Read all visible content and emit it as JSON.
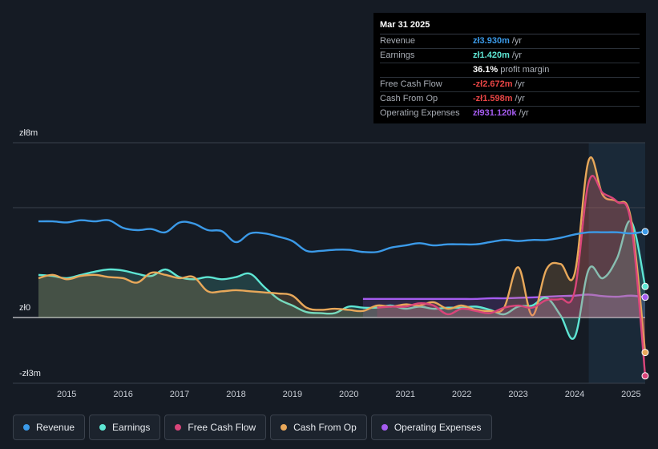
{
  "tooltip": {
    "date": "Mar 31 2025",
    "rows": [
      {
        "label": "Revenue",
        "value": "zł3.930m",
        "unit": "/yr",
        "color": "#3b9ae8"
      },
      {
        "label": "Earnings",
        "value": "zł1.420m",
        "unit": "/yr",
        "color": "#5ee6d4"
      },
      {
        "label": "",
        "value": "36.1%",
        "unit": "profit margin",
        "color": "#ffffff"
      },
      {
        "label": "Free Cash Flow",
        "value": "-zł2.672m",
        "unit": "/yr",
        "color": "#e84545"
      },
      {
        "label": "Cash From Op",
        "value": "-zł1.598m",
        "unit": "/yr",
        "color": "#e84545"
      },
      {
        "label": "Operating Expenses",
        "value": "zł931.120k",
        "unit": "/yr",
        "color": "#a55cf0"
      }
    ]
  },
  "legend": [
    {
      "label": "Revenue",
      "color": "#3b9ae8"
    },
    {
      "label": "Earnings",
      "color": "#5ee6d4"
    },
    {
      "label": "Free Cash Flow",
      "color": "#d9457a"
    },
    {
      "label": "Cash From Op",
      "color": "#e8a85a"
    },
    {
      "label": "Operating Expenses",
      "color": "#a55cf0"
    }
  ],
  "chart_data": {
    "type": "line",
    "title": "",
    "xlabel": "",
    "ylabel": "",
    "y_tick_labels": [
      "zł8m",
      "zł0",
      "-zł3m"
    ],
    "ylim": [
      -3,
      8
    ],
    "xlim": [
      2014.5,
      2025.25
    ],
    "x_ticks": [
      "2015",
      "2016",
      "2017",
      "2018",
      "2019",
      "2020",
      "2021",
      "2022",
      "2023",
      "2024",
      "2025"
    ],
    "forecast_shade_start": 2024.25,
    "series": [
      {
        "name": "Revenue",
        "color": "#3b9ae8",
        "fill": false,
        "points": [
          [
            2014.5,
            4.4
          ],
          [
            2014.75,
            4.4
          ],
          [
            2015.0,
            4.35
          ],
          [
            2015.25,
            4.45
          ],
          [
            2015.5,
            4.4
          ],
          [
            2015.75,
            4.45
          ],
          [
            2016.0,
            4.1
          ],
          [
            2016.25,
            4.0
          ],
          [
            2016.5,
            4.05
          ],
          [
            2016.75,
            3.9
          ],
          [
            2017.0,
            4.35
          ],
          [
            2017.25,
            4.3
          ],
          [
            2017.5,
            4.0
          ],
          [
            2017.75,
            3.95
          ],
          [
            2018.0,
            3.45
          ],
          [
            2018.25,
            3.85
          ],
          [
            2018.5,
            3.85
          ],
          [
            2018.75,
            3.7
          ],
          [
            2019.0,
            3.5
          ],
          [
            2019.25,
            3.05
          ],
          [
            2019.5,
            3.05
          ],
          [
            2019.75,
            3.1
          ],
          [
            2020.0,
            3.1
          ],
          [
            2020.25,
            3.0
          ],
          [
            2020.5,
            3.0
          ],
          [
            2020.75,
            3.2
          ],
          [
            2021.0,
            3.3
          ],
          [
            2021.25,
            3.4
          ],
          [
            2021.5,
            3.3
          ],
          [
            2021.75,
            3.35
          ],
          [
            2022.0,
            3.35
          ],
          [
            2022.25,
            3.35
          ],
          [
            2022.5,
            3.45
          ],
          [
            2022.75,
            3.55
          ],
          [
            2023.0,
            3.5
          ],
          [
            2023.25,
            3.55
          ],
          [
            2023.5,
            3.55
          ],
          [
            2023.75,
            3.65
          ],
          [
            2024.0,
            3.8
          ],
          [
            2024.25,
            3.9
          ],
          [
            2024.5,
            3.9
          ],
          [
            2024.75,
            3.9
          ],
          [
            2025.0,
            3.85
          ],
          [
            2025.25,
            3.93
          ]
        ]
      },
      {
        "name": "Earnings",
        "color": "#5ee6d4",
        "fill": true,
        "points": [
          [
            2014.5,
            1.95
          ],
          [
            2014.75,
            1.9
          ],
          [
            2015.0,
            1.8
          ],
          [
            2015.25,
            1.95
          ],
          [
            2015.5,
            2.1
          ],
          [
            2015.75,
            2.2
          ],
          [
            2016.0,
            2.15
          ],
          [
            2016.25,
            2.0
          ],
          [
            2016.5,
            1.9
          ],
          [
            2016.75,
            2.2
          ],
          [
            2017.0,
            1.85
          ],
          [
            2017.25,
            1.75
          ],
          [
            2017.5,
            1.85
          ],
          [
            2017.75,
            1.75
          ],
          [
            2018.0,
            1.85
          ],
          [
            2018.25,
            2.0
          ],
          [
            2018.5,
            1.4
          ],
          [
            2018.75,
            0.85
          ],
          [
            2019.0,
            0.55
          ],
          [
            2019.25,
            0.25
          ],
          [
            2019.5,
            0.2
          ],
          [
            2019.75,
            0.2
          ],
          [
            2020.0,
            0.5
          ],
          [
            2020.25,
            0.45
          ],
          [
            2020.5,
            0.45
          ],
          [
            2020.75,
            0.55
          ],
          [
            2021.0,
            0.4
          ],
          [
            2021.25,
            0.5
          ],
          [
            2021.5,
            0.4
          ],
          [
            2021.75,
            0.45
          ],
          [
            2022.0,
            0.45
          ],
          [
            2022.25,
            0.5
          ],
          [
            2022.5,
            0.35
          ],
          [
            2022.75,
            0.15
          ],
          [
            2023.0,
            0.5
          ],
          [
            2023.25,
            0.55
          ],
          [
            2023.5,
            0.9
          ],
          [
            2023.75,
            0.1
          ],
          [
            2024.0,
            -0.9
          ],
          [
            2024.25,
            2.2
          ],
          [
            2024.5,
            1.8
          ],
          [
            2024.75,
            2.7
          ],
          [
            2025.0,
            4.4
          ],
          [
            2025.25,
            1.42
          ]
        ]
      },
      {
        "name": "Free Cash Flow",
        "color": "#d9457a",
        "fill": true,
        "points": [
          [
            2020.5,
            0.45
          ],
          [
            2020.75,
            0.5
          ],
          [
            2021.0,
            0.5
          ],
          [
            2021.25,
            0.65
          ],
          [
            2021.5,
            0.55
          ],
          [
            2021.75,
            0.15
          ],
          [
            2022.0,
            0.4
          ],
          [
            2022.25,
            0.3
          ],
          [
            2022.5,
            0.2
          ],
          [
            2022.75,
            0.45
          ],
          [
            2023.0,
            0.55
          ],
          [
            2023.25,
            0.45
          ],
          [
            2023.5,
            0.8
          ],
          [
            2023.75,
            0.85
          ],
          [
            2024.0,
            1.2
          ],
          [
            2024.25,
            6.2
          ],
          [
            2024.5,
            5.7
          ],
          [
            2024.75,
            5.3
          ],
          [
            2025.0,
            4.3
          ],
          [
            2025.25,
            -2.67
          ]
        ]
      },
      {
        "name": "Cash From Op",
        "color": "#e8a85a",
        "fill": true,
        "points": [
          [
            2014.5,
            1.8
          ],
          [
            2014.75,
            1.95
          ],
          [
            2015.0,
            1.75
          ],
          [
            2015.25,
            1.9
          ],
          [
            2015.5,
            1.95
          ],
          [
            2015.75,
            1.85
          ],
          [
            2016.0,
            1.8
          ],
          [
            2016.25,
            1.6
          ],
          [
            2016.5,
            2.05
          ],
          [
            2016.75,
            1.95
          ],
          [
            2017.0,
            1.8
          ],
          [
            2017.25,
            1.85
          ],
          [
            2017.5,
            1.2
          ],
          [
            2017.75,
            1.2
          ],
          [
            2018.0,
            1.25
          ],
          [
            2018.25,
            1.2
          ],
          [
            2018.5,
            1.15
          ],
          [
            2018.75,
            1.1
          ],
          [
            2019.0,
            1.0
          ],
          [
            2019.25,
            0.45
          ],
          [
            2019.5,
            0.35
          ],
          [
            2019.75,
            0.4
          ],
          [
            2020.0,
            0.35
          ],
          [
            2020.25,
            0.3
          ],
          [
            2020.5,
            0.55
          ],
          [
            2020.75,
            0.5
          ],
          [
            2021.0,
            0.6
          ],
          [
            2021.25,
            0.55
          ],
          [
            2021.5,
            0.7
          ],
          [
            2021.75,
            0.4
          ],
          [
            2022.0,
            0.55
          ],
          [
            2022.25,
            0.35
          ],
          [
            2022.5,
            0.3
          ],
          [
            2022.75,
            0.45
          ],
          [
            2023.0,
            2.3
          ],
          [
            2023.25,
            0.1
          ],
          [
            2023.5,
            2.2
          ],
          [
            2023.75,
            2.45
          ],
          [
            2024.0,
            2.0
          ],
          [
            2024.25,
            7.2
          ],
          [
            2024.5,
            5.6
          ],
          [
            2024.75,
            5.3
          ],
          [
            2025.0,
            4.5
          ],
          [
            2025.25,
            -1.6
          ]
        ]
      },
      {
        "name": "Operating Expenses",
        "color": "#a55cf0",
        "fill": true,
        "points": [
          [
            2020.25,
            0.85
          ],
          [
            2020.5,
            0.85
          ],
          [
            2020.75,
            0.85
          ],
          [
            2021.0,
            0.85
          ],
          [
            2021.25,
            0.85
          ],
          [
            2021.5,
            0.85
          ],
          [
            2021.75,
            0.85
          ],
          [
            2022.0,
            0.85
          ],
          [
            2022.25,
            0.85
          ],
          [
            2022.5,
            0.88
          ],
          [
            2022.75,
            0.88
          ],
          [
            2023.0,
            0.9
          ],
          [
            2023.25,
            0.92
          ],
          [
            2023.5,
            0.95
          ],
          [
            2023.75,
            0.98
          ],
          [
            2024.0,
            1.0
          ],
          [
            2024.25,
            1.05
          ],
          [
            2024.5,
            0.98
          ],
          [
            2024.75,
            0.95
          ],
          [
            2025.0,
            1.0
          ],
          [
            2025.25,
            0.93
          ]
        ]
      }
    ]
  }
}
